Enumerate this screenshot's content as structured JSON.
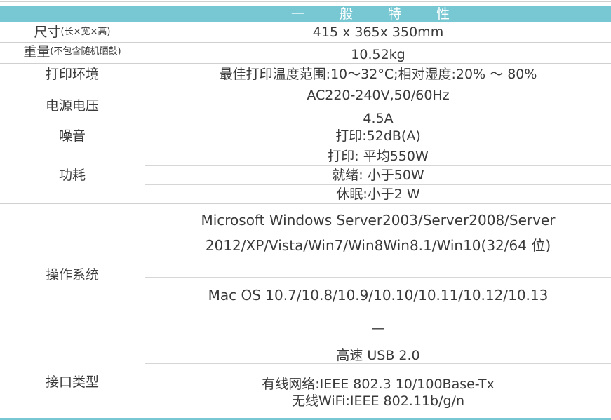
{
  "header": {
    "title": "一 般 特 性"
  },
  "rows": {
    "size": {
      "label": "尺寸",
      "label_note": "(长×宽×高)",
      "value": "415 x 365x 350mm"
    },
    "weight": {
      "label": "重量",
      "label_note": "(不包含随机硒鼓)",
      "value": "10.52kg"
    },
    "environment": {
      "label": "打印环境",
      "value": "最佳打印温度范围:10～32°C;相对湿度:20% ～ 80%"
    },
    "power_voltage": {
      "label": "电源电压",
      "values": [
        "AC220-240V,50/60Hz",
        "4.5A"
      ]
    },
    "noise": {
      "label": "噪音",
      "value": "打印:52dB(A)"
    },
    "power_consumption": {
      "label": "功耗",
      "values": [
        "打印: 平均550W",
        "就绪: 小于50W",
        "休眠:小于2 W"
      ]
    },
    "os": {
      "label": "操作系统",
      "windows_line1": "Microsoft Windows Server2003/Server2008/Server",
      "windows_line2": "2012/XP/Vista/Win7/Win8Win8.1/Win10(32/64 位)",
      "mac": "Mac OS 10.7/10.8/10.9/10.10/10.11/10.12/10.13",
      "other": "—"
    },
    "interface": {
      "label": "接口类型",
      "usb": "高速 USB 2.0",
      "wired": "有线网络:IEEE 802.3 10/100Base-Tx",
      "wifi": "无线WiFi:IEEE 802.11b/g/n"
    }
  },
  "colors": {
    "header": "#78c8d3",
    "text": "#3a3a3a",
    "grid": "#d0d0d0"
  }
}
